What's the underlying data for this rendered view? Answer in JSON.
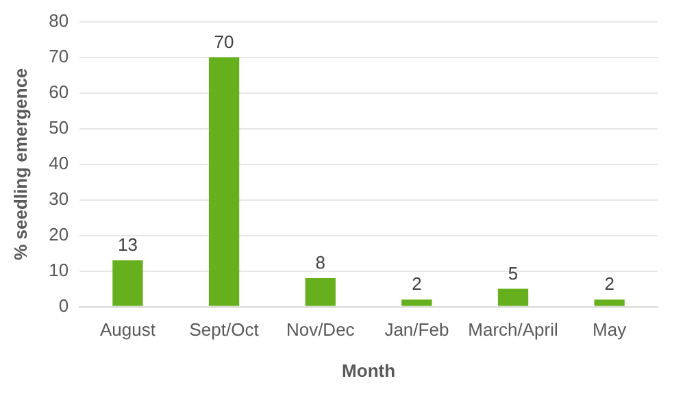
{
  "chart_data": {
    "type": "bar",
    "xlabel": "Month",
    "ylabel": "% seedling emergence",
    "categories": [
      "August",
      "Sept/Oct",
      "Nov/Dec",
      "Jan/Feb",
      "March/April",
      "May"
    ],
    "values": [
      13,
      70,
      8,
      2,
      5,
      2
    ],
    "color": "#66b01e",
    "ylim": [
      0,
      80
    ],
    "yticks": [
      0,
      10,
      20,
      30,
      40,
      50,
      60,
      70,
      80
    ],
    "grid": "y",
    "data_labels": true,
    "legend": false
  }
}
